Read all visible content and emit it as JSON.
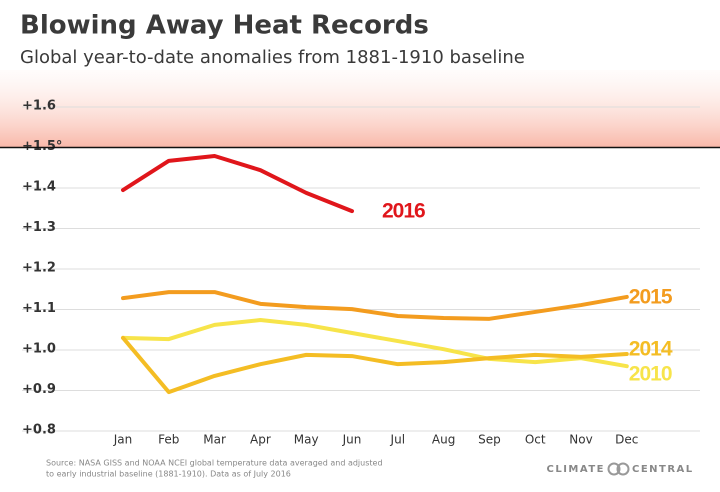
{
  "chart_data": {
    "type": "line",
    "title": "Blowing Away Heat Records",
    "subtitle": "Global year-to-date anomalies from 1881-1910 baseline",
    "categories": [
      "Jan",
      "Feb",
      "Mar",
      "Apr",
      "May",
      "Jun",
      "Jul",
      "Aug",
      "Sep",
      "Oct",
      "Nov",
      "Dec"
    ],
    "series": [
      {
        "name": "2016",
        "color": "#e0161b",
        "values": [
          1.395,
          1.467,
          1.479,
          1.444,
          1.388,
          1.343,
          null,
          null,
          null,
          null,
          null,
          null
        ]
      },
      {
        "name": "2015",
        "color": "#f39c1f",
        "values": [
          1.128,
          1.143,
          1.143,
          1.114,
          1.106,
          1.101,
          1.084,
          1.079,
          1.077,
          1.094,
          1.111,
          1.131
        ]
      },
      {
        "name": "2014",
        "color": "#f4bd24",
        "values": [
          1.03,
          0.896,
          0.936,
          0.965,
          0.988,
          0.985,
          0.965,
          0.97,
          0.98,
          0.988,
          0.983,
          0.99
        ]
      },
      {
        "name": "2010",
        "color": "#f7e44a",
        "values": [
          1.03,
          1.027,
          1.062,
          1.074,
          1.062,
          1.042,
          1.022,
          1.002,
          0.978,
          0.97,
          0.98,
          0.96
        ]
      }
    ],
    "ylim": [
      0.8,
      1.6
    ],
    "yticks": [
      {
        "value": 0.8,
        "label": "+0.8"
      },
      {
        "value": 0.9,
        "label": "+0.9"
      },
      {
        "value": 1.0,
        "label": "+1.0"
      },
      {
        "value": 1.1,
        "label": "+1.1"
      },
      {
        "value": 1.2,
        "label": "+1.2"
      },
      {
        "value": 1.3,
        "label": "+1.3"
      },
      {
        "value": 1.4,
        "label": "+1.4"
      },
      {
        "value": 1.5,
        "label": "+1.5°"
      },
      {
        "value": 1.6,
        "label": "+1.6"
      }
    ],
    "threshold": 1.5,
    "grid": true,
    "source": [
      "Source: NASA GISS and NOAA NCEI global temperature data averaged and adjusted",
      "to early industrial baseline (1881-1910). Data as of July 2016"
    ],
    "brand": [
      "CLIMATE",
      "CENTRAL"
    ]
  }
}
